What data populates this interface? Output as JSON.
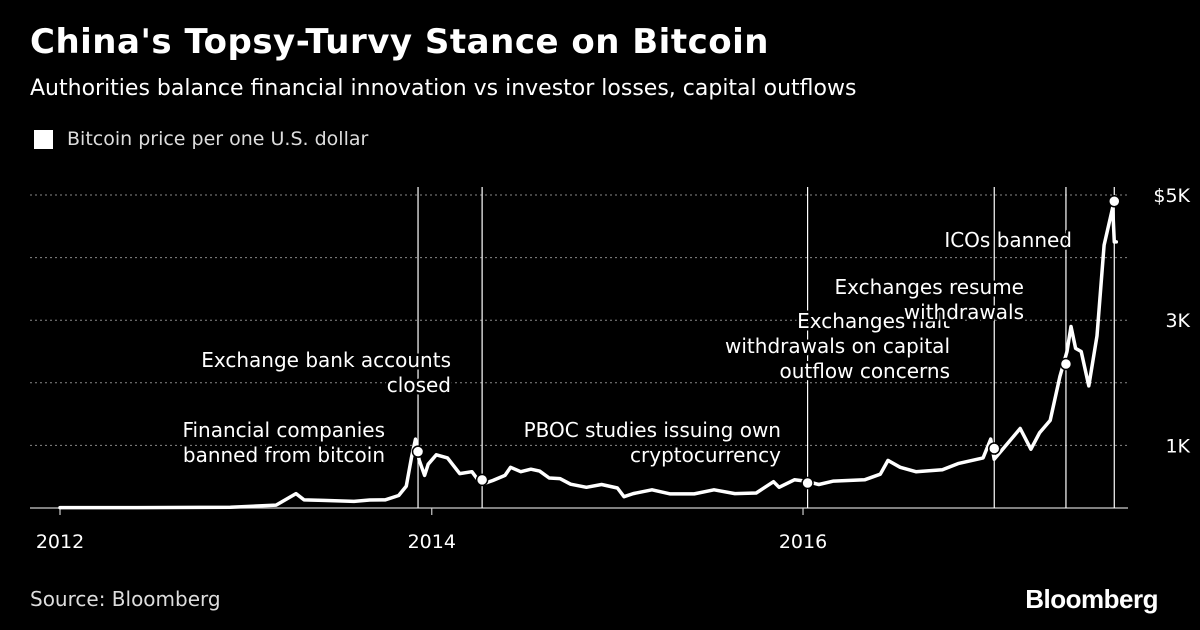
{
  "header": {
    "title": "China's Topsy-Turvy Stance on Bitcoin",
    "subtitle": "Authorities balance financial innovation vs investor losses, capital outflows"
  },
  "legend": {
    "label": "Bitcoin price per one U.S. dollar",
    "color": "#ffffff"
  },
  "footer": {
    "source": "Source: Bloomberg",
    "brand": "Bloomberg"
  },
  "colors": {
    "background": "#000000",
    "line": "#ffffff",
    "grid": "#888888"
  },
  "chart_data": {
    "type": "line",
    "series": [
      {
        "name": "Bitcoin price per one U.S. dollar",
        "points": [
          [
            "2012-01-01",
            6
          ],
          [
            "2012-06-01",
            6
          ],
          [
            "2012-12-01",
            13
          ],
          [
            "2013-03-01",
            47
          ],
          [
            "2013-04-09",
            230
          ],
          [
            "2013-04-25",
            130
          ],
          [
            "2013-06-01",
            122
          ],
          [
            "2013-08-01",
            105
          ],
          [
            "2013-09-01",
            128
          ],
          [
            "2013-10-01",
            130
          ],
          [
            "2013-10-28",
            200
          ],
          [
            "2013-11-12",
            350
          ],
          [
            "2013-11-22",
            800
          ],
          [
            "2013-11-30",
            1100
          ],
          [
            "2013-12-07",
            770
          ],
          [
            "2013-12-18",
            520
          ],
          [
            "2013-12-25",
            700
          ],
          [
            "2014-01-10",
            850
          ],
          [
            "2014-02-01",
            800
          ],
          [
            "2014-02-25",
            550
          ],
          [
            "2014-03-21",
            580
          ],
          [
            "2014-04-01",
            460
          ],
          [
            "2014-04-10",
            380
          ],
          [
            "2014-05-01",
            440
          ],
          [
            "2014-05-25",
            520
          ],
          [
            "2014-06-05",
            650
          ],
          [
            "2014-06-25",
            580
          ],
          [
            "2014-07-15",
            620
          ],
          [
            "2014-08-01",
            590
          ],
          [
            "2014-08-20",
            480
          ],
          [
            "2014-09-10",
            470
          ],
          [
            "2014-10-01",
            380
          ],
          [
            "2014-11-01",
            330
          ],
          [
            "2014-12-01",
            375
          ],
          [
            "2015-01-01",
            320
          ],
          [
            "2015-01-14",
            180
          ],
          [
            "2015-02-01",
            230
          ],
          [
            "2015-03-10",
            290
          ],
          [
            "2015-04-15",
            225
          ],
          [
            "2015-06-01",
            225
          ],
          [
            "2015-07-10",
            290
          ],
          [
            "2015-08-20",
            230
          ],
          [
            "2015-10-01",
            240
          ],
          [
            "2015-11-04",
            420
          ],
          [
            "2015-11-15",
            330
          ],
          [
            "2015-12-15",
            450
          ],
          [
            "2016-01-06",
            430
          ],
          [
            "2016-02-01",
            375
          ],
          [
            "2016-03-01",
            430
          ],
          [
            "2016-05-01",
            450
          ],
          [
            "2016-06-01",
            540
          ],
          [
            "2016-06-16",
            760
          ],
          [
            "2016-07-10",
            650
          ],
          [
            "2016-08-10",
            580
          ],
          [
            "2016-10-01",
            610
          ],
          [
            "2016-11-01",
            710
          ],
          [
            "2016-12-20",
            800
          ],
          [
            "2017-01-04",
            1100
          ],
          [
            "2017-01-11",
            780
          ],
          [
            "2017-02-05",
            1020
          ],
          [
            "2017-03-03",
            1270
          ],
          [
            "2017-03-24",
            940
          ],
          [
            "2017-04-10",
            1200
          ],
          [
            "2017-05-01",
            1400
          ],
          [
            "2017-05-20",
            2100
          ],
          [
            "2017-06-03",
            2500
          ],
          [
            "2017-06-11",
            2900
          ],
          [
            "2017-06-20",
            2550
          ],
          [
            "2017-07-01",
            2500
          ],
          [
            "2017-07-16",
            1950
          ],
          [
            "2017-08-01",
            2750
          ],
          [
            "2017-08-15",
            4200
          ],
          [
            "2017-09-01",
            4800
          ],
          [
            "2017-09-04",
            4250
          ],
          [
            "2017-09-08",
            4250
          ]
        ]
      }
    ],
    "events": [
      {
        "date": "2013-12-05",
        "value": 900,
        "lines": [
          "Financial companies",
          "banned from bitcoin"
        ]
      },
      {
        "date": "2014-04-10",
        "value": 450,
        "lines": [
          "Exchange bank accounts",
          "closed"
        ]
      },
      {
        "date": "2016-01-10",
        "value": 400,
        "lines": [
          "PBOC studies issuing own",
          "cryptocurrency"
        ]
      },
      {
        "date": "2017-01-11",
        "value": 950,
        "lines": [
          "Exchanges halt",
          "withdrawals on capital",
          "outflow concerns"
        ]
      },
      {
        "date": "2017-06-01",
        "value": 2300,
        "lines": [
          "Exchanges resume",
          "withdrawals"
        ]
      },
      {
        "date": "2017-09-04",
        "value": 4900,
        "lines": [
          "ICOs banned"
        ]
      }
    ],
    "x_ticks": [
      "2012",
      "2014",
      "2016"
    ],
    "y_ticks": [
      {
        "value": 1000,
        "label": "1K"
      },
      {
        "value": 3000,
        "label": "3K"
      },
      {
        "value": 5000,
        "label": "$5K"
      }
    ],
    "y_gridlines": [
      0,
      1000,
      2000,
      3000,
      4000,
      5000
    ],
    "xlim": [
      "2012-01-01",
      "2017-10-01"
    ],
    "ylim": [
      0,
      5000
    ],
    "grid": true,
    "legend_position": "top-left"
  }
}
